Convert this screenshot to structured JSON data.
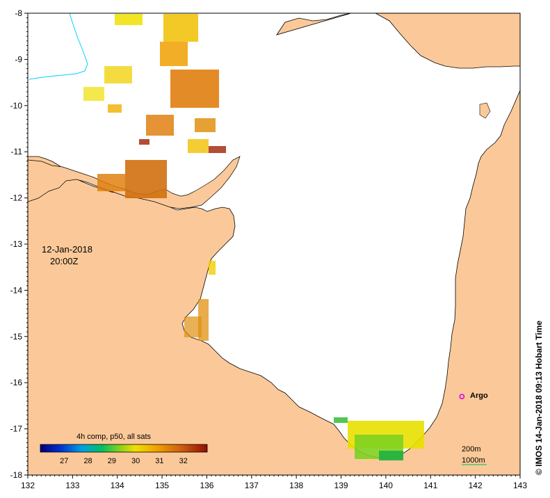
{
  "map": {
    "date": "12-Jan-2018",
    "time": "20:00Z",
    "credit": "© IMOS 14-Jan-2018 09:13 Hobart Time",
    "x_ticks": [
      "132",
      "133",
      "134",
      "135",
      "136",
      "137",
      "138",
      "139",
      "140",
      "141",
      "142",
      "143"
    ],
    "y_ticks": [
      "-8",
      "-9",
      "-10",
      "-11",
      "-12",
      "-13",
      "-14",
      "-15",
      "-16",
      "-17",
      "-18"
    ],
    "colorbar": {
      "title": "4h comp, p50, all sats",
      "ticks": [
        "27",
        "28",
        "29",
        "30",
        "31",
        "32"
      ],
      "range": [
        26,
        33
      ]
    },
    "marker": {
      "label": "Argo",
      "lon": 141.7,
      "lat": -16.3,
      "color": "#e020e0"
    },
    "contours": {
      "shallow": "200m",
      "deep": "1000m",
      "shallow_color": "#00d0ff",
      "deep_color": "#30c060"
    },
    "colors": {
      "land": "#fbc999",
      "sea": "#ffffff"
    },
    "extent": {
      "lon": [
        132,
        143
      ],
      "lat": [
        -18,
        -8
      ]
    }
  }
}
